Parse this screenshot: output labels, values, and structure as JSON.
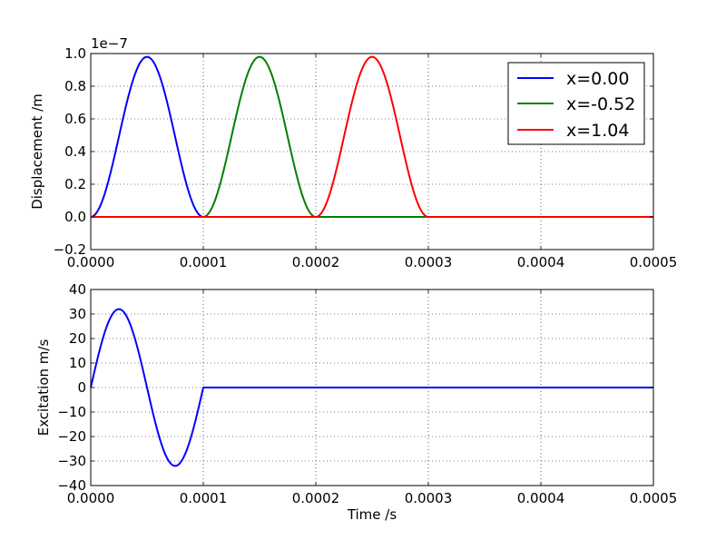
{
  "chart_data": [
    {
      "type": "line",
      "ylabel": "Displacement /m",
      "xlabel": "",
      "offset_text": "1e−7",
      "xlim": [
        0,
        0.0005
      ],
      "ylim": [
        -0.2,
        1.0
      ],
      "y_scale_factor": 1e-07,
      "grid": true,
      "legend_position": "top-right",
      "x_ticks": [
        "0.0000",
        "0.0001",
        "0.0002",
        "0.0003",
        "0.0004",
        "0.0005"
      ],
      "y_ticks": [
        "−0.2",
        "0.0",
        "0.2",
        "0.4",
        "0.6",
        "0.8",
        "1.0"
      ],
      "series": [
        {
          "name": "x=0.00",
          "color": "#0000ff",
          "shape": "single sine-squared pulse from 0 to 0.0001 s, peak 0.98e-7 m",
          "x": [
            0,
            1.25e-05,
            2.5e-05,
            3.75e-05,
            5e-05,
            6.25e-05,
            7.5e-05,
            8.75e-05,
            0.0001,
            0.0005
          ],
          "y": [
            0,
            0.144,
            0.49,
            0.837,
            0.98,
            0.837,
            0.49,
            0.144,
            0,
            0
          ]
        },
        {
          "name": "x=-0.52",
          "color": "#008000",
          "shape": "single sine-squared pulse from 0.0001 to 0.0002 s, peak 0.98e-7 m",
          "x": [
            0,
            0.0001,
            0.0001125,
            0.000125,
            0.0001375,
            0.00015,
            0.0001625,
            0.000175,
            0.0001875,
            0.0002,
            0.0005
          ],
          "y": [
            0,
            0,
            0.144,
            0.49,
            0.837,
            0.98,
            0.837,
            0.49,
            0.144,
            0,
            0
          ]
        },
        {
          "name": "x=1.04",
          "color": "#ff0000",
          "shape": "single sine-squared pulse from 0.0002 to 0.0003 s, peak 0.98e-7 m",
          "x": [
            0,
            0.0002,
            0.0002125,
            0.000225,
            0.0002375,
            0.00025,
            0.0002625,
            0.000275,
            0.0002875,
            0.0003,
            0.0005
          ],
          "y": [
            0,
            0,
            0.144,
            0.49,
            0.837,
            0.98,
            0.837,
            0.49,
            0.144,
            0,
            0
          ]
        }
      ]
    },
    {
      "type": "line",
      "ylabel": "Excitation m/s",
      "xlabel": "Time /s",
      "xlim": [
        0,
        0.0005
      ],
      "ylim": [
        -40,
        40
      ],
      "grid": true,
      "x_ticks": [
        "0.0000",
        "0.0001",
        "0.0002",
        "0.0003",
        "0.0004",
        "0.0005"
      ],
      "y_ticks": [
        "−40",
        "−30",
        "−20",
        "−10",
        "0",
        "10",
        "20",
        "30",
        "40"
      ],
      "series": [
        {
          "color": "#0000ff",
          "shape": "one full sine cycle from 0 to 0.0001 s, amplitude 32 m/s, then zero",
          "x": [
            0,
            1.25e-05,
            2.5e-05,
            3.75e-05,
            5e-05,
            6.25e-05,
            7.5e-05,
            8.75e-05,
            0.0001,
            0.0005
          ],
          "y": [
            0,
            22.6,
            32,
            22.6,
            0,
            -22.6,
            -32,
            -22.6,
            0,
            0
          ]
        }
      ]
    }
  ]
}
